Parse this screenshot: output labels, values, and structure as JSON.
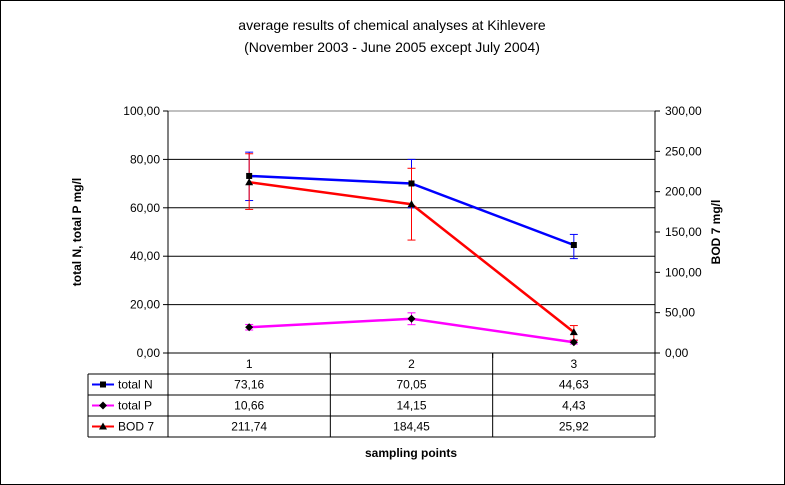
{
  "chart_data": {
    "type": "line",
    "title_line1": "average results of chemical analyses at Kihlevere",
    "title_line2": "(November 2003 - June 2005 except July 2004)",
    "xlabel": "sampling points",
    "ylabel_left": "total N, total P  mg/l",
    "ylabel_right": "BOD 7  mg/l",
    "categories": [
      "1",
      "2",
      "3"
    ],
    "ylim_left": [
      0,
      100
    ],
    "ylim_right": [
      0,
      300
    ],
    "left_ticks": [
      "0,00",
      "20,00",
      "40,00",
      "60,00",
      "80,00",
      "100,00"
    ],
    "right_ticks": [
      "0,00",
      "50,00",
      "100,00",
      "150,00",
      "200,00",
      "250,00",
      "300,00"
    ],
    "series": [
      {
        "name": "total N",
        "axis": "left",
        "color": "#0000ff",
        "marker": "square",
        "values": [
          73.16,
          70.05,
          44.63
        ],
        "labels": [
          "73,16",
          "70,05",
          "44,63"
        ],
        "error_low": [
          63,
          60,
          39
        ],
        "error_high": [
          83,
          80,
          49
        ],
        "error_color": "#0000ff"
      },
      {
        "name": "total P",
        "axis": "left",
        "color": "#ff00ff",
        "marker": "diamond",
        "values": [
          10.66,
          14.15,
          4.43
        ],
        "labels": [
          "10,66",
          "14,15",
          "4,43"
        ],
        "error_low": [
          9.5,
          11.7,
          3.7
        ],
        "error_high": [
          11.8,
          16.6,
          5.2
        ],
        "error_color": "#ff00ff"
      },
      {
        "name": "BOD 7",
        "axis": "right",
        "color": "#ff0000",
        "marker": "triangle",
        "values": [
          211.74,
          184.45,
          25.92
        ],
        "labels": [
          "211,74",
          "184,45",
          "25,92"
        ],
        "error_low": [
          178,
          140,
          16
        ],
        "error_high": [
          247,
          229,
          34
        ],
        "error_color": "#ff0000"
      }
    ]
  }
}
